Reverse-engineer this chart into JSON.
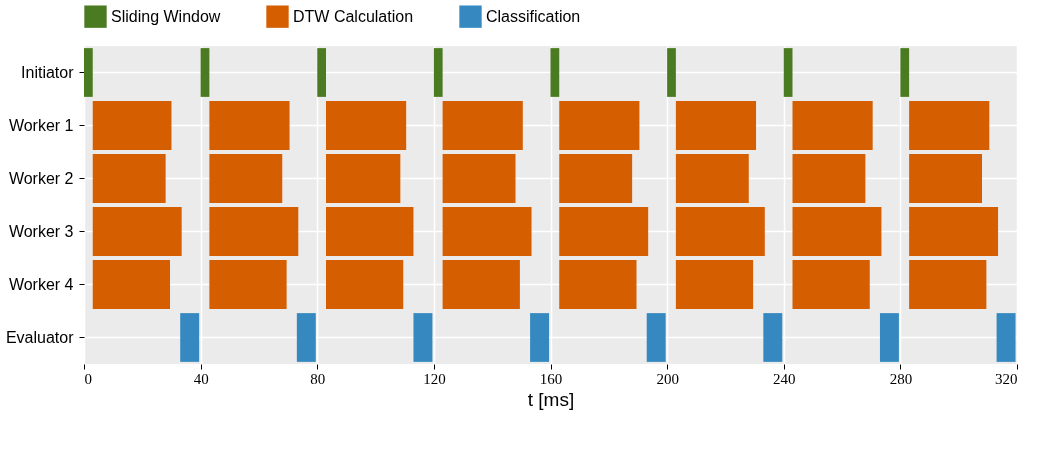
{
  "chart_data": {
    "type": "bar",
    "orientation": "horizontal",
    "xlabel": "t [ms]",
    "categories": [
      "Initiator",
      "Worker 1",
      "Worker 2",
      "Worker 3",
      "Worker 4",
      "Evaluator"
    ],
    "xlim": [
      0,
      320
    ],
    "xticks": [
      0,
      40,
      80,
      120,
      160,
      200,
      240,
      280,
      320
    ],
    "grid": true,
    "legend": "top",
    "series": [
      {
        "name": "Sliding Window",
        "color": "#4a7a22",
        "values": [
          3,
          null,
          null,
          null,
          null,
          null
        ],
        "base": [
          0,
          null,
          null,
          null,
          null,
          null
        ]
      },
      {
        "name": "DTW Calculation",
        "color": "#d55e00",
        "values": [
          null,
          27,
          25,
          30.5,
          26.5,
          null
        ],
        "base": [
          null,
          3,
          3,
          3,
          3,
          null
        ]
      },
      {
        "name": "Classification",
        "color": "#3589c0",
        "values": [
          null,
          null,
          null,
          null,
          null,
          6.5
        ],
        "base": [
          null,
          null,
          null,
          null,
          null,
          33
        ]
      },
      {
        "color": "#4a7a22",
        "values": [
          3,
          null,
          null,
          null,
          null,
          null
        ],
        "base": [
          40,
          null,
          null,
          null,
          null,
          null
        ]
      },
      {
        "color": "#d55e00",
        "values": [
          null,
          27.5,
          25,
          30.5,
          26.5,
          null
        ],
        "base": [
          null,
          43,
          43,
          43,
          43,
          null
        ]
      },
      {
        "color": "#3589c0",
        "values": [
          null,
          null,
          null,
          null,
          null,
          6.5
        ],
        "base": [
          null,
          null,
          null,
          null,
          null,
          73
        ]
      },
      {
        "color": "#4a7a22",
        "values": [
          3,
          null,
          null,
          null,
          null,
          null
        ],
        "base": [
          80,
          null,
          null,
          null,
          null,
          null
        ]
      },
      {
        "color": "#d55e00",
        "values": [
          null,
          27.5,
          25.5,
          30,
          26.5,
          null
        ],
        "base": [
          null,
          83,
          83,
          83,
          83,
          null
        ]
      },
      {
        "color": "#3589c0",
        "values": [
          null,
          null,
          null,
          null,
          null,
          6.5
        ],
        "base": [
          null,
          null,
          null,
          null,
          null,
          113
        ]
      },
      {
        "color": "#4a7a22",
        "values": [
          3,
          null,
          null,
          null,
          null,
          null
        ],
        "base": [
          120,
          null,
          null,
          null,
          null,
          null
        ]
      },
      {
        "color": "#d55e00",
        "values": [
          null,
          27.5,
          25,
          30.5,
          26.5,
          null
        ],
        "base": [
          null,
          123,
          123,
          123,
          123,
          null
        ]
      },
      {
        "color": "#3589c0",
        "values": [
          null,
          null,
          null,
          null,
          null,
          6.5
        ],
        "base": [
          null,
          null,
          null,
          null,
          null,
          153
        ]
      },
      {
        "color": "#4a7a22",
        "values": [
          3,
          null,
          null,
          null,
          null,
          null
        ],
        "base": [
          160,
          null,
          null,
          null,
          null,
          null
        ]
      },
      {
        "color": "#d55e00",
        "values": [
          null,
          27.5,
          25,
          30.5,
          26.5,
          null
        ],
        "base": [
          null,
          163,
          163,
          163,
          163,
          null
        ]
      },
      {
        "color": "#3589c0",
        "values": [
          null,
          null,
          null,
          null,
          null,
          6.5
        ],
        "base": [
          null,
          null,
          null,
          null,
          null,
          193
        ]
      },
      {
        "color": "#4a7a22",
        "values": [
          3,
          null,
          null,
          null,
          null,
          null
        ],
        "base": [
          200,
          null,
          null,
          null,
          null,
          null
        ]
      },
      {
        "color": "#d55e00",
        "values": [
          null,
          27.5,
          25,
          30.5,
          26.5,
          null
        ],
        "base": [
          null,
          203,
          203,
          203,
          203,
          null
        ]
      },
      {
        "color": "#3589c0",
        "values": [
          null,
          null,
          null,
          null,
          null,
          6.5
        ],
        "base": [
          null,
          null,
          null,
          null,
          null,
          233
        ]
      },
      {
        "color": "#4a7a22",
        "values": [
          3,
          null,
          null,
          null,
          null,
          null
        ],
        "base": [
          240,
          null,
          null,
          null,
          null,
          null
        ]
      },
      {
        "color": "#d55e00",
        "values": [
          null,
          27.5,
          25,
          30.5,
          26.5,
          null
        ],
        "base": [
          null,
          243,
          243,
          243,
          243,
          null
        ]
      },
      {
        "color": "#3589c0",
        "values": [
          null,
          null,
          null,
          null,
          null,
          6.5
        ],
        "base": [
          null,
          null,
          null,
          null,
          null,
          273
        ]
      },
      {
        "color": "#4a7a22",
        "values": [
          3,
          null,
          null,
          null,
          null,
          null
        ],
        "base": [
          280,
          null,
          null,
          null,
          null,
          null
        ]
      },
      {
        "color": "#d55e00",
        "values": [
          null,
          27.5,
          25,
          30.5,
          26.5,
          null
        ],
        "base": [
          null,
          283,
          283,
          283,
          283,
          null
        ]
      },
      {
        "color": "#3589c0",
        "values": [
          null,
          null,
          null,
          null,
          null,
          6.5
        ],
        "base": [
          null,
          null,
          null,
          null,
          null,
          313
        ]
      }
    ]
  }
}
